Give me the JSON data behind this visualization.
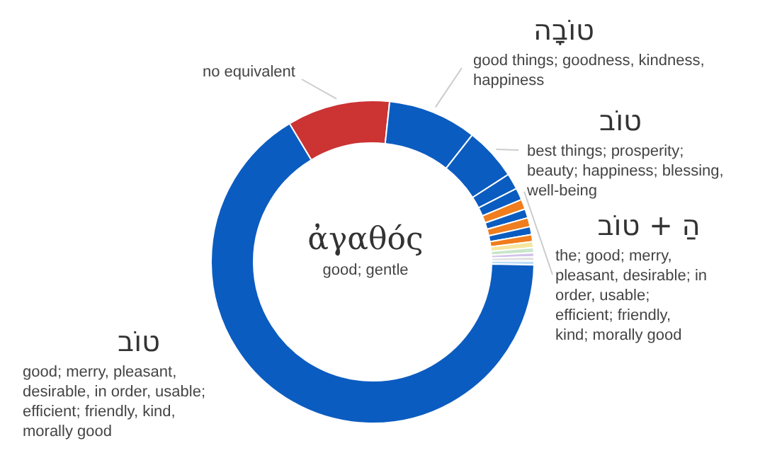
{
  "chart_data": {
    "type": "donut",
    "title": "ἀγαθός",
    "subtitle": "good; gentle",
    "categories": [
      "no equivalent",
      "טוֹבָה\ngood things; goodness, kindness, happiness",
      "טוֹב\nbest things; prosperity; beauty; happiness; blessing, well-being",
      null,
      "הַ + טוֹב\nthe; good; merry, pleasant, desirable; in order, usable; efficient; friendly, kind; morally good",
      null,
      null,
      null,
      null,
      null,
      null,
      null,
      null,
      null,
      null,
      "טוֹב\ngood; merry, pleasant, desirable, in order, usable; efficient; friendly, kind, morally good"
    ],
    "values": [
      10.3,
      8.9,
      5.3,
      1.6,
      1.2,
      1.0,
      0.9,
      0.9,
      0.8,
      0.7,
      0.6,
      0.5,
      0.4,
      0.4,
      0.4,
      66.1
    ],
    "colors": [
      "#cc3333",
      "#0b5cc0",
      "#0b5cc0",
      "#0b5cc0",
      "#0b5cc0",
      "#f07d1e",
      "#0b5cc0",
      "#f07d1e",
      "#0b5cc0",
      "#f07d1e",
      "#f5e6a0",
      "#c8e6c9",
      "#d1c4e9",
      "#e0e0e0",
      "#bbdefb",
      "#0b5cc0"
    ],
    "legend": false
  }
}
